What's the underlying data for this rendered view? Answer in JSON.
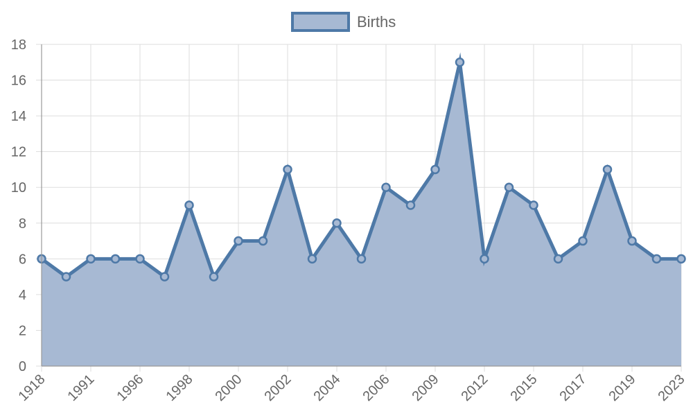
{
  "chart_data": {
    "type": "area",
    "title": "",
    "xlabel": "",
    "ylabel": "",
    "ylim": [
      0,
      18
    ],
    "y_ticks": [
      0,
      2,
      4,
      6,
      8,
      10,
      12,
      14,
      16,
      18
    ],
    "x_tick_labels": [
      "1918",
      "1991",
      "1996",
      "1998",
      "2000",
      "2002",
      "2004",
      "2006",
      "2009",
      "2012",
      "2015",
      "2017",
      "2019",
      "2023"
    ],
    "grid": true,
    "legend_position": "top-center",
    "series": [
      {
        "name": "Births",
        "values": [
          6,
          5,
          6,
          6,
          6,
          5,
          9,
          5,
          7,
          7,
          11,
          6,
          8,
          6,
          10,
          9,
          11,
          17,
          6,
          10,
          9,
          6,
          7,
          11,
          7,
          6,
          6
        ],
        "line_color": "#4e79a7",
        "fill_color": "#a7b9d3"
      }
    ]
  }
}
